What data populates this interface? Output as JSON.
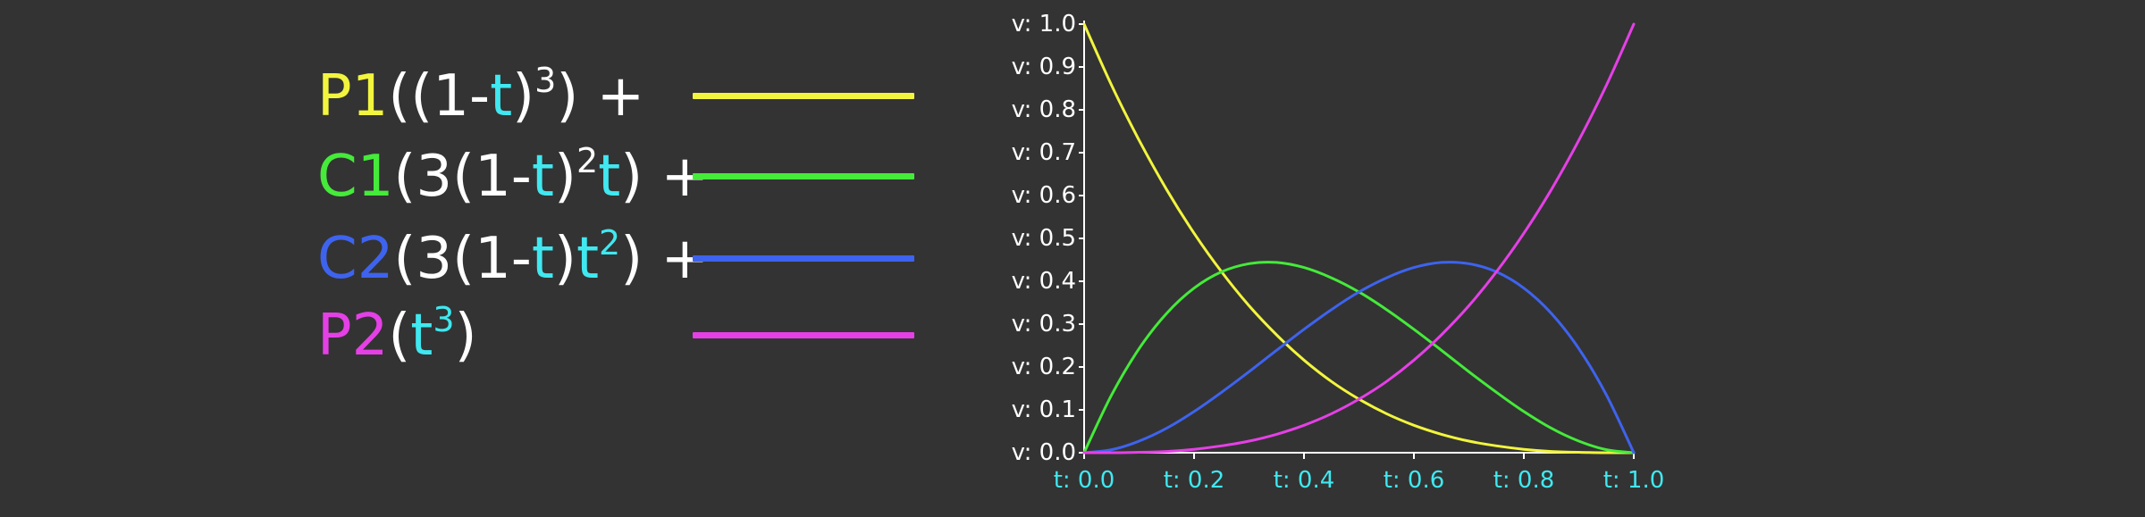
{
  "legend": {
    "operator": "+",
    "var_color": "#40e8f0",
    "text_color": "#ffffff",
    "rows": [
      {
        "point": "P1",
        "color": "#f2f53d",
        "parts": [
          {
            "t": "(("
          },
          {
            "t": "1-"
          },
          {
            "t": "t",
            "v": true
          },
          {
            "t": ")"
          },
          {
            "t": "3",
            "sup": true
          },
          {
            "t": ") "
          },
          {
            "t": "+"
          }
        ]
      },
      {
        "point": "C1",
        "color": "#45ea3a",
        "parts": [
          {
            "t": "(3(1-"
          },
          {
            "t": "t",
            "v": true
          },
          {
            "t": ")"
          },
          {
            "t": "2",
            "sup": true
          },
          {
            "t": "t",
            "v": true
          },
          {
            "t": ") "
          },
          {
            "t": "+"
          }
        ]
      },
      {
        "point": "C2",
        "color": "#3e63ee",
        "parts": [
          {
            "t": "(3(1-"
          },
          {
            "t": "t",
            "v": true
          },
          {
            "t": ")"
          },
          {
            "t": "t",
            "v": true
          },
          {
            "t": "2",
            "sup": true,
            "v": true
          },
          {
            "t": ") "
          },
          {
            "t": "+"
          }
        ]
      },
      {
        "point": "P2",
        "color": "#e540e6",
        "parts": [
          {
            "t": "("
          },
          {
            "t": "t",
            "v": true
          },
          {
            "t": "3",
            "sup": true,
            "v": true
          },
          {
            "t": ")"
          }
        ]
      }
    ]
  },
  "chart_data": {
    "type": "line",
    "title": "",
    "xlabel": "",
    "ylabel": "",
    "xlim": [
      0,
      1
    ],
    "ylim": [
      0,
      1
    ],
    "grid": false,
    "legend_position": "left",
    "x_ticks": [
      "t: 0.0",
      "t: 0.2",
      "t: 0.4",
      "t: 0.6",
      "t: 0.8",
      "t: 1.0"
    ],
    "y_ticks": [
      "v: 1.0",
      "v: 0.9",
      "v: 0.8",
      "v: 0.7",
      "v: 0.6",
      "v: 0.5",
      "v: 0.4",
      "v: 0.3",
      "v: 0.2",
      "v: 0.1",
      "v: 0.0"
    ],
    "x_tick_color": "#40e8f0",
    "y_tick_color": "#ffffff",
    "axis_color": "#ffffff",
    "x": [
      0,
      0.05,
      0.1,
      0.15,
      0.2,
      0.25,
      0.3,
      0.35,
      0.4,
      0.45,
      0.5,
      0.55,
      0.6,
      0.65,
      0.7,
      0.75,
      0.8,
      0.85,
      0.9,
      0.95,
      1
    ],
    "series": [
      {
        "key": "P1",
        "color": "#f2f53d",
        "values": [
          1,
          0.857,
          0.729,
          0.614,
          0.512,
          0.422,
          0.343,
          0.275,
          0.216,
          0.166,
          0.125,
          0.091,
          0.064,
          0.043,
          0.027,
          0.016,
          0.008,
          0.003,
          0.001,
          0,
          0
        ]
      },
      {
        "key": "C1",
        "color": "#45ea3a",
        "values": [
          0,
          0.135,
          0.243,
          0.325,
          0.384,
          0.422,
          0.441,
          0.444,
          0.432,
          0.408,
          0.375,
          0.334,
          0.288,
          0.239,
          0.189,
          0.141,
          0.096,
          0.057,
          0.027,
          0.007,
          0
        ]
      },
      {
        "key": "C2",
        "color": "#3e63ee",
        "values": [
          0,
          0.007,
          0.027,
          0.057,
          0.096,
          0.141,
          0.189,
          0.239,
          0.288,
          0.334,
          0.375,
          0.408,
          0.432,
          0.444,
          0.441,
          0.422,
          0.384,
          0.325,
          0.243,
          0.135,
          0
        ]
      },
      {
        "key": "P2",
        "color": "#e540e6",
        "values": [
          0,
          0,
          0.001,
          0.003,
          0.008,
          0.016,
          0.027,
          0.043,
          0.064,
          0.091,
          0.125,
          0.166,
          0.216,
          0.275,
          0.343,
          0.422,
          0.512,
          0.614,
          0.729,
          0.857,
          1
        ]
      }
    ]
  }
}
